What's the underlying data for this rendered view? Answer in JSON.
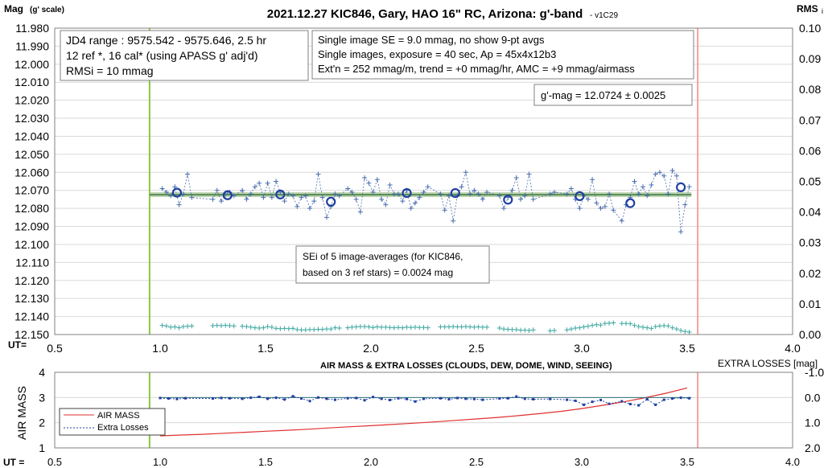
{
  "colors": {
    "grid": "#d9d9d9",
    "mag_points": "#4a6fb0",
    "avg_circle": "#1f3fa0",
    "fit_band": "#9fbf8f",
    "fit_line": "#3a7a3a",
    "start_line": "#8cc63f",
    "end_line": "#f4a0a0",
    "rms_points": "#3fa7a0",
    "air_mass": "#e03030",
    "extra_losses": "#1f3fa0"
  },
  "chart_data": [
    {
      "type": "scatter",
      "title": "2021.12.27 KIC846, Gary, HAO 16\" RC, Arizona: g'-band",
      "title_suffix": "- v1C29",
      "ylabel": "Mag",
      "ylabel_sub": "(g' scale)",
      "y2label": "RMS",
      "y2label_sub": "i",
      "xlabel": "UT=",
      "xlim": [
        0.5,
        4.0
      ],
      "xticks": [
        "0.5",
        "1.0",
        "1.5",
        "2.0",
        "2.5",
        "3.0",
        "3.5",
        "4.0"
      ],
      "ylim": [
        12.15,
        11.98
      ],
      "yticks": [
        "11.980",
        "11.990",
        "12.000",
        "12.010",
        "12.020",
        "12.030",
        "12.040",
        "12.050",
        "12.060",
        "12.070",
        "12.080",
        "12.090",
        "12.100",
        "12.110",
        "12.120",
        "12.130",
        "12.140",
        "12.150"
      ],
      "y2lim": [
        0.0,
        0.1
      ],
      "y2ticks": [
        "0.10",
        "0.09",
        "0.08",
        "0.07",
        "0.06",
        "0.05",
        "0.04",
        "0.03",
        "0.02",
        "0.01",
        "0.00"
      ],
      "grid": true,
      "start_ut": 0.95,
      "end_ut": 3.55,
      "fit_mag": 12.0724,
      "annotations": {
        "jd_range": "JD4 range : 9575.542 - 9575.646,  2.5  hr",
        "refs": "12 ref *, 16 cal* (using APASS g' adj'd)",
        "rmsi": "RMSi = 10 mmag",
        "single_se": "Single image SE = 9.0 mmag, no show  9-pt avgs",
        "exposure": "Single images, exposure = 40 sec, Ap = 45x4x12b3",
        "extn": "Ext'n = 252 mmag/m, trend = +0 mmag/hr, AMC = +9 mmag/airmass",
        "gmag": "g'-mag = 12.0724 ± 0.0025",
        "sei_line1": "SEi of 5 image-averages (for KIC846,",
        "sei_line2": "based on 3 ref stars) = 0.0024 mag"
      },
      "series": [
        {
          "name": "",
          "kind": "single-images",
          "x": [
            1.01,
            1.03,
            1.05,
            1.07,
            1.09,
            1.11,
            1.13,
            1.15,
            1.25,
            1.27,
            1.29,
            1.31,
            1.33,
            1.35,
            1.39,
            1.41,
            1.43,
            1.45,
            1.47,
            1.49,
            1.51,
            1.53,
            1.55,
            1.57,
            1.59,
            1.61,
            1.63,
            1.65,
            1.67,
            1.69,
            1.71,
            1.73,
            1.75,
            1.77,
            1.79,
            1.81,
            1.83,
            1.85,
            1.89,
            1.91,
            1.93,
            1.95,
            1.97,
            1.99,
            2.01,
            2.03,
            2.05,
            2.07,
            2.09,
            2.11,
            2.13,
            2.15,
            2.17,
            2.19,
            2.21,
            2.23,
            2.25,
            2.27,
            2.33,
            2.35,
            2.37,
            2.39,
            2.41,
            2.43,
            2.45,
            2.47,
            2.49,
            2.51,
            2.53,
            2.55,
            2.61,
            2.63,
            2.65,
            2.67,
            2.69,
            2.71,
            2.73,
            2.75,
            2.77,
            2.85,
            2.87,
            2.93,
            2.95,
            2.97,
            2.99,
            3.01,
            3.03,
            3.05,
            3.07,
            3.09,
            3.11,
            3.13,
            3.15,
            3.19,
            3.21,
            3.23,
            3.25,
            3.27,
            3.29,
            3.31,
            3.33,
            3.35,
            3.37,
            3.39,
            3.41,
            3.43,
            3.45,
            3.47,
            3.49,
            3.51
          ],
          "y": [
            12.069,
            12.071,
            12.073,
            12.068,
            12.078,
            12.072,
            12.061,
            12.074,
            12.075,
            12.07,
            12.076,
            12.072,
            12.071,
            12.073,
            12.07,
            12.075,
            12.072,
            12.068,
            12.066,
            12.074,
            12.066,
            12.074,
            12.065,
            12.071,
            12.076,
            12.072,
            12.073,
            12.079,
            12.074,
            12.073,
            12.08,
            12.076,
            12.061,
            12.074,
            12.085,
            12.079,
            12.072,
            12.073,
            12.069,
            12.071,
            12.075,
            12.082,
            12.063,
            12.066,
            12.071,
            12.064,
            12.075,
            12.078,
            12.067,
            12.072,
            12.072,
            12.076,
            12.07,
            12.08,
            12.077,
            12.074,
            12.071,
            12.068,
            12.072,
            12.081,
            12.073,
            12.087,
            12.073,
            12.068,
            12.06,
            12.072,
            12.07,
            12.072,
            12.075,
            12.071,
            12.073,
            12.08,
            12.074,
            12.07,
            12.063,
            12.075,
            12.073,
            12.061,
            12.075,
            12.072,
            12.071,
            12.072,
            12.069,
            12.075,
            12.08,
            12.073,
            12.075,
            12.064,
            12.077,
            12.08,
            12.079,
            12.072,
            12.081,
            12.087,
            12.078,
            12.074,
            12.065,
            12.072,
            12.068,
            12.073,
            12.067,
            12.061,
            12.06,
            12.062,
            12.072,
            12.059,
            12.062,
            12.093,
            12.078,
            12.068
          ]
        },
        {
          "name": "",
          "kind": "image-averages",
          "x": [
            1.08,
            1.32,
            1.57,
            1.81,
            2.17,
            2.4,
            2.65,
            2.99,
            3.23,
            3.47
          ],
          "y": [
            12.0713,
            12.0727,
            12.0723,
            12.0763,
            12.0715,
            12.0715,
            12.0752,
            12.0732,
            12.0771,
            12.0683
          ]
        },
        {
          "name": "",
          "kind": "rms",
          "axis": "y2",
          "x": [
            1.01,
            1.03,
            1.05,
            1.07,
            1.09,
            1.11,
            1.13,
            1.15,
            1.25,
            1.27,
            1.29,
            1.31,
            1.33,
            1.35,
            1.39,
            1.41,
            1.43,
            1.45,
            1.47,
            1.49,
            1.51,
            1.53,
            1.55,
            1.57,
            1.59,
            1.61,
            1.63,
            1.65,
            1.67,
            1.69,
            1.71,
            1.73,
            1.75,
            1.77,
            1.79,
            1.81,
            1.83,
            1.85,
            1.89,
            1.91,
            1.93,
            1.95,
            1.97,
            1.99,
            2.01,
            2.03,
            2.05,
            2.07,
            2.09,
            2.11,
            2.13,
            2.15,
            2.17,
            2.19,
            2.21,
            2.23,
            2.25,
            2.27,
            2.33,
            2.35,
            2.37,
            2.39,
            2.41,
            2.43,
            2.45,
            2.47,
            2.49,
            2.51,
            2.53,
            2.55,
            2.61,
            2.63,
            2.65,
            2.67,
            2.69,
            2.71,
            2.73,
            2.75,
            2.77,
            2.85,
            2.87,
            2.93,
            2.95,
            2.97,
            2.99,
            3.01,
            3.03,
            3.05,
            3.07,
            3.09,
            3.11,
            3.13,
            3.15,
            3.19,
            3.21,
            3.23,
            3.25,
            3.27,
            3.29,
            3.31,
            3.33,
            3.35,
            3.37,
            3.39,
            3.41,
            3.43,
            3.45,
            3.47,
            3.49,
            3.51
          ],
          "y": [
            0.003,
            0.0028,
            0.0024,
            0.0025,
            0.0022,
            0.0026,
            0.0027,
            0.0028,
            0.0029,
            0.003,
            0.0029,
            0.003,
            0.0029,
            0.0028,
            0.0027,
            0.0026,
            0.0024,
            0.0022,
            0.0021,
            0.0022,
            0.0026,
            0.0024,
            0.002,
            0.0019,
            0.002,
            0.0019,
            0.002,
            0.0016,
            0.0015,
            0.0015,
            0.0016,
            0.0016,
            0.0017,
            0.0017,
            0.0018,
            0.0018,
            0.0022,
            0.0021,
            0.0022,
            0.0024,
            0.0025,
            0.0026,
            0.0026,
            0.0025,
            0.0023,
            0.0025,
            0.0024,
            0.0024,
            0.0023,
            0.0022,
            0.0023,
            0.0022,
            0.0024,
            0.0023,
            0.0024,
            0.0023,
            0.0023,
            0.0022,
            0.0025,
            0.0025,
            0.0025,
            0.0026,
            0.0025,
            0.0025,
            0.0026,
            0.0025,
            0.0024,
            0.0025,
            0.0024,
            0.0024,
            0.0021,
            0.0018,
            0.0017,
            0.0016,
            0.0016,
            0.0014,
            0.0014,
            0.0013,
            0.0015,
            0.0012,
            0.0013,
            0.0015,
            0.0018,
            0.0021,
            0.0022,
            0.0025,
            0.0027,
            0.003,
            0.0032,
            0.0031,
            0.0036,
            0.0037,
            0.0038,
            0.0036,
            0.0036,
            0.0035,
            0.003,
            0.0026,
            0.0024,
            0.0022,
            0.002,
            0.0026,
            0.0028,
            0.0029,
            0.0028,
            0.0022,
            0.0018,
            0.0013,
            0.001,
            0.0008
          ]
        }
      ]
    },
    {
      "type": "line",
      "title": "AIR MASS & EXTRA LOSSES (CLOUDS, DEW, DOME, WIND, SEEING)",
      "ylabel": "AIR MASS",
      "y2label": "EXTRA LOSSES [mag]",
      "xlabel": "UT =",
      "xlim": [
        0.5,
        4.0
      ],
      "xticks": [
        "0.5",
        "1.0",
        "1.5",
        "2.0",
        "2.5",
        "3.0",
        "3.5",
        "4.0"
      ],
      "ylim": [
        1,
        4
      ],
      "yticks": [
        "4",
        "3",
        "2",
        "1"
      ],
      "y2lim": [
        2.0,
        -1.0
      ],
      "y2ticks": [
        "-1.0",
        "0.0",
        "1.0",
        "2.0"
      ],
      "grid": true,
      "legend_position": "lower-left",
      "series": [
        {
          "name": "AIR MASS",
          "axis": "y",
          "x": [
            1.0,
            1.1,
            1.2,
            1.3,
            1.4,
            1.5,
            1.6,
            1.7,
            1.8,
            1.9,
            2.0,
            2.1,
            2.2,
            2.3,
            2.4,
            2.5,
            2.6,
            2.7,
            2.8,
            2.9,
            3.0,
            3.1,
            3.2,
            3.3,
            3.4,
            3.5
          ],
          "y": [
            1.48,
            1.51,
            1.54,
            1.58,
            1.62,
            1.66,
            1.7,
            1.74,
            1.79,
            1.84,
            1.88,
            1.93,
            1.98,
            2.03,
            2.09,
            2.15,
            2.21,
            2.28,
            2.36,
            2.45,
            2.56,
            2.69,
            2.83,
            2.99,
            3.17,
            3.38
          ]
        },
        {
          "name": "Extra Losses",
          "axis": "y2",
          "x": [
            1.0,
            1.04,
            1.08,
            1.12,
            1.25,
            1.29,
            1.33,
            1.39,
            1.43,
            1.47,
            1.51,
            1.55,
            1.59,
            1.63,
            1.67,
            1.71,
            1.75,
            1.79,
            1.83,
            1.89,
            1.93,
            1.97,
            2.01,
            2.05,
            2.09,
            2.13,
            2.17,
            2.21,
            2.25,
            2.33,
            2.37,
            2.41,
            2.45,
            2.49,
            2.53,
            2.61,
            2.65,
            2.69,
            2.73,
            2.77,
            2.85,
            2.93,
            2.97,
            3.01,
            3.05,
            3.09,
            3.13,
            3.19,
            3.23,
            3.27,
            3.31,
            3.35,
            3.39,
            3.43,
            3.47,
            3.51
          ],
          "y": [
            0.02,
            0.04,
            0.06,
            0.03,
            0.04,
            0.02,
            0.03,
            0.05,
            0.01,
            -0.03,
            0.05,
            0.01,
            0.08,
            -0.05,
            0.04,
            0.14,
            0.0,
            0.05,
            0.09,
            0.03,
            0.02,
            0.11,
            -0.02,
            0.05,
            0.1,
            0.03,
            0.06,
            0.16,
            0.05,
            0.03,
            0.07,
            0.02,
            0.05,
            0.06,
            0.09,
            0.04,
            0.03,
            -0.04,
            0.05,
            0.07,
            0.06,
            0.09,
            0.13,
            0.29,
            0.17,
            0.1,
            0.25,
            0.15,
            0.26,
            0.31,
            0.07,
            0.29,
            0.09,
            0.04,
            0.01,
            0.03
          ]
        }
      ]
    }
  ]
}
